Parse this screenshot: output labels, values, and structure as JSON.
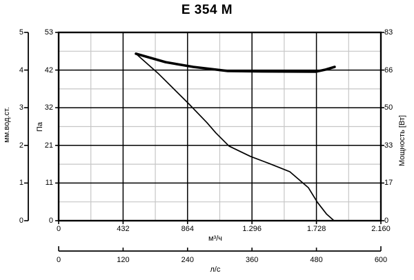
{
  "title": "E 354 M",
  "chart_data": {
    "type": "line",
    "title": "E 354 M",
    "grid": "major black lines with one gray minor line between each pair, both directions",
    "legend": "none",
    "x_axis": {
      "label": "м³/ч",
      "range": [
        0,
        2160
      ],
      "ticks": [
        0,
        432,
        864,
        1296,
        1728,
        2160
      ],
      "tick_labels": [
        "0",
        "432",
        "864",
        "1.296",
        "1.728",
        "2.160"
      ]
    },
    "x_axis_secondary": {
      "label": "л/с",
      "range": [
        0,
        600
      ],
      "ticks": [
        0,
        120,
        240,
        360,
        480,
        600
      ],
      "tick_labels": [
        "0",
        "120",
        "240",
        "360",
        "480",
        "600"
      ]
    },
    "y_axis_left": {
      "label": "Па",
      "range": [
        0,
        53
      ],
      "ticks": [
        0,
        11,
        21,
        32,
        42,
        53
      ],
      "tick_labels": [
        "0",
        "11",
        "21",
        "32",
        "42",
        "53"
      ]
    },
    "y_axis_left_outer": {
      "label": "мм.вод.ст.",
      "range": [
        0,
        5
      ],
      "ticks": [
        0,
        1,
        2,
        3,
        4,
        5
      ],
      "tick_labels": [
        "0",
        "1",
        "2",
        "3",
        "4",
        "5"
      ]
    },
    "y_axis_right": {
      "label": "Мощность [Вт]",
      "range": [
        0,
        83
      ],
      "ticks": [
        0,
        17,
        33,
        50,
        66,
        83
      ],
      "tick_labels": [
        "0",
        "17",
        "33",
        "50",
        "66",
        "83"
      ]
    },
    "series": [
      {
        "name": "pressure-curve",
        "y_axis": "left",
        "units": "Па",
        "style": "thin",
        "points": [
          [
            518,
            47.0
          ],
          [
            671,
            41.3
          ],
          [
            870,
            33.0
          ],
          [
            994,
            27.6
          ],
          [
            1054,
            24.7
          ],
          [
            1142,
            21.0
          ],
          [
            1286,
            18.1
          ],
          [
            1411,
            16.1
          ],
          [
            1549,
            13.8
          ],
          [
            1674,
            9.3
          ],
          [
            1734,
            5.2
          ],
          [
            1795,
            1.9
          ],
          [
            1846,
            0
          ]
        ]
      },
      {
        "name": "power-curve",
        "y_axis": "right",
        "units": "Вт",
        "style": "thick",
        "points": [
          [
            518,
            73.6
          ],
          [
            717,
            69.9
          ],
          [
            902,
            67.8
          ],
          [
            1133,
            66.0
          ],
          [
            1364,
            65.8
          ],
          [
            1725,
            65.7
          ],
          [
            1790,
            66.6
          ],
          [
            1850,
            67.8
          ]
        ]
      }
    ],
    "colors": {
      "curve": "#000000",
      "major_grid": "#000000",
      "minor_grid": "#c6c6c6",
      "background": "#ffffff",
      "text": "#000000"
    }
  }
}
